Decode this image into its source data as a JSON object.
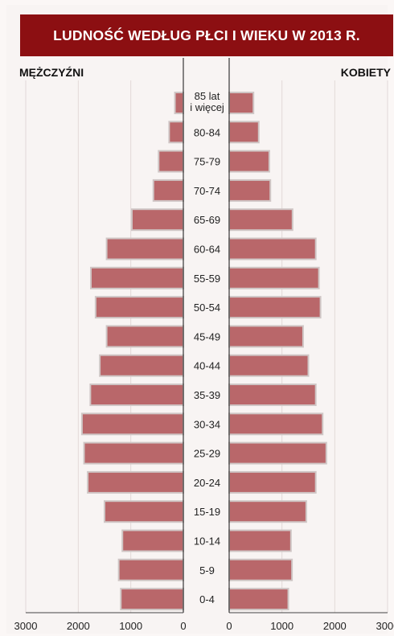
{
  "colors": {
    "title_bg": "#8c0f12",
    "bar_fill": "#b9676a",
    "bar_stroke": "#cfc6c5",
    "grid": "#e2d9d8"
  },
  "chart_data": {
    "type": "bar",
    "orientation": "horizontal-population-pyramid",
    "title": "LUDNOŚĆ WEDŁUG PŁCI I WIEKU W 2013 R.",
    "left_label": "MĘŻCZYŹNI",
    "right_label": "KOBIETY",
    "categories": [
      "85 lat\ni więcej",
      "80-84",
      "75-79",
      "70-74",
      "65-69",
      "60-64",
      "55-59",
      "50-54",
      "45-49",
      "40-44",
      "35-39",
      "30-34",
      "25-29",
      "20-24",
      "15-19",
      "10-14",
      "5-9",
      "0-4"
    ],
    "series": [
      {
        "name": "MĘŻCZYŹNI",
        "values": [
          160,
          270,
          470,
          570,
          980,
          1460,
          1760,
          1670,
          1460,
          1590,
          1770,
          1930,
          1890,
          1820,
          1500,
          1160,
          1230,
          1190
        ]
      },
      {
        "name": "KOBIETY",
        "values": [
          460,
          560,
          760,
          780,
          1200,
          1640,
          1700,
          1730,
          1400,
          1500,
          1640,
          1770,
          1840,
          1640,
          1460,
          1170,
          1190,
          1120
        ]
      }
    ],
    "xlim": [
      0,
      3000
    ],
    "x_ticks": [
      "3000",
      "2000",
      "1000",
      "0",
      "0",
      "1000",
      "2000",
      "3000"
    ],
    "grid": "vertical"
  }
}
